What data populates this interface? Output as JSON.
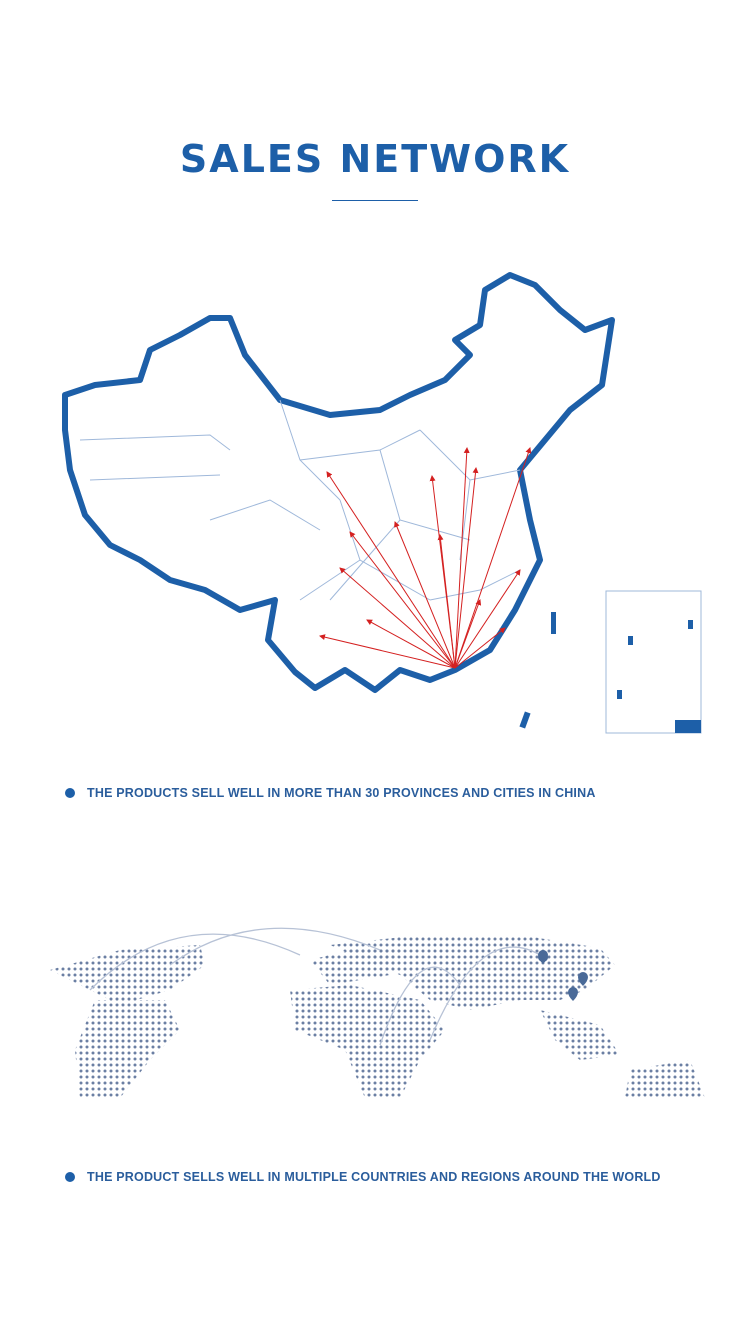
{
  "header": {
    "title": "SALES NETWORK"
  },
  "china_section": {
    "caption": "THE PRODUCTS SELL WELL IN MORE THAN 30 PROVINCES AND CITIES IN CHINA",
    "outline_color": "#1d5fa8",
    "arrow_color": "#d42020"
  },
  "world_section": {
    "caption": "THE PRODUCT SELLS WELL IN MULTIPLE COUNTRIES AND REGIONS AROUND THE WORLD",
    "dot_color": "#6b7fa3",
    "marker_color": "#4a6a98"
  },
  "colors": {
    "brand": "#1d5fa8"
  }
}
